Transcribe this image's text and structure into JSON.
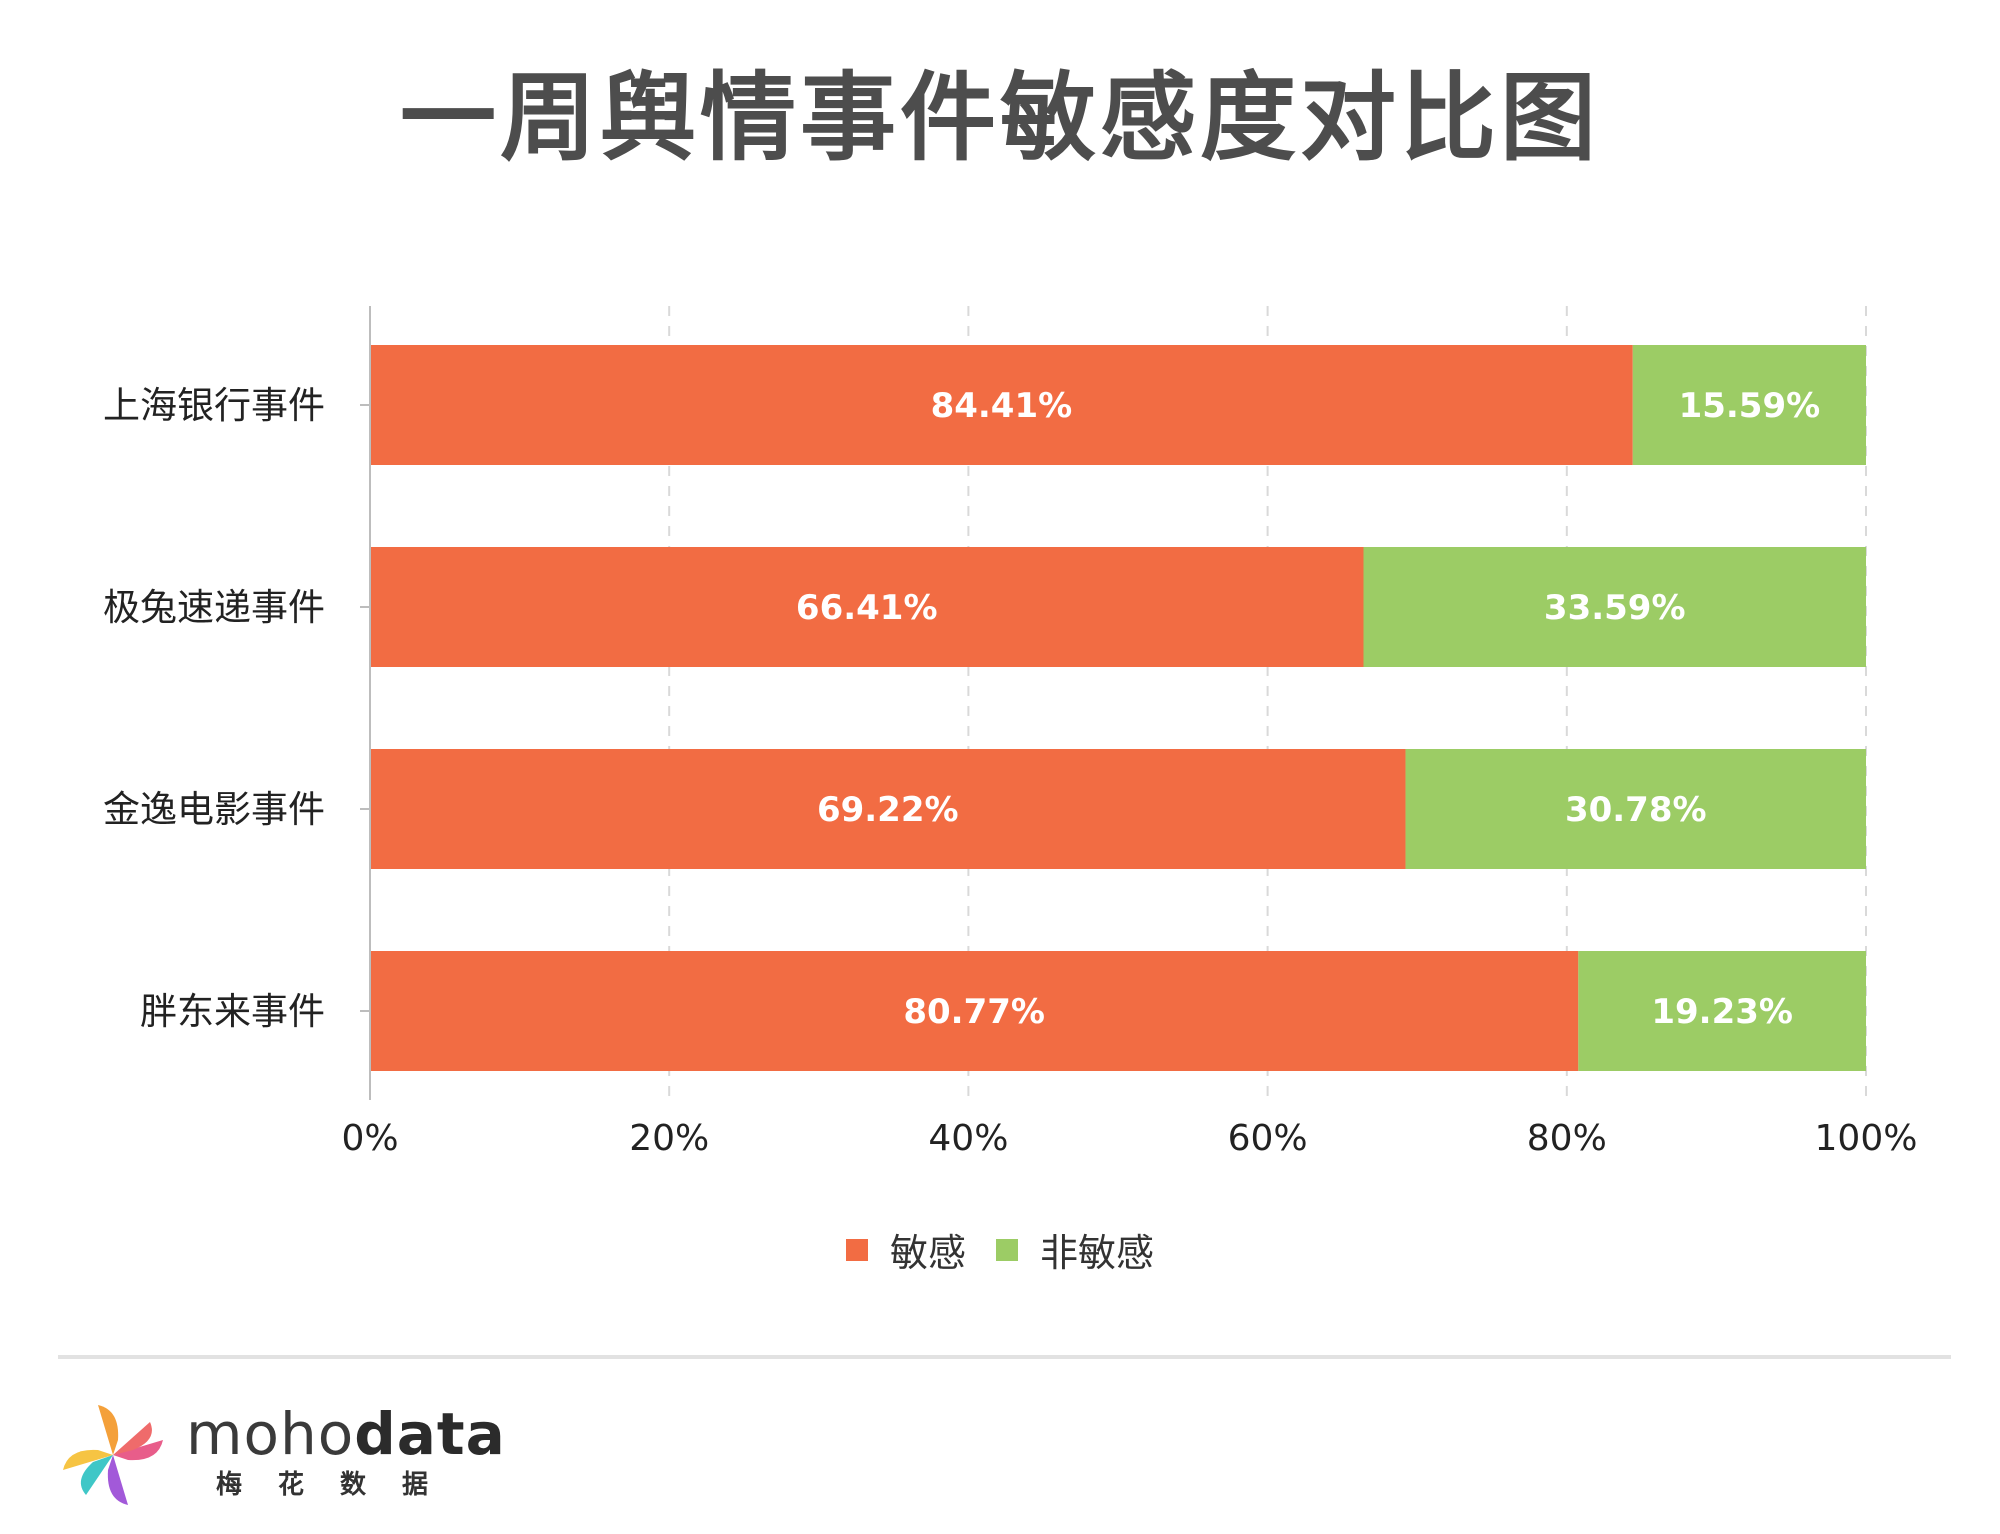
{
  "title": "一周舆情事件敏感度对比图",
  "chart_data": {
    "type": "bar",
    "orientation": "horizontal",
    "stacked": true,
    "percent": true,
    "title": "一周舆情事件敏感度对比图",
    "categories": [
      "上海银行事件",
      "极兔速递事件",
      "金逸电影事件",
      "胖东来事件"
    ],
    "series": [
      {
        "name": "敏感",
        "color": "#f26c43",
        "values": [
          84.41,
          66.41,
          69.22,
          80.77
        ],
        "labels": [
          "84.41%",
          "66.41%",
          "69.22%",
          "80.77%"
        ]
      },
      {
        "name": "非敏感",
        "color": "#9ccc65",
        "values": [
          15.59,
          33.59,
          30.78,
          19.23
        ],
        "labels": [
          "15.59%",
          "33.59%",
          "30.78%",
          "19.23%"
        ]
      }
    ],
    "xlim": [
      0,
      100
    ],
    "xticks": [
      "0%",
      "20%",
      "40%",
      "60%",
      "80%",
      "100%"
    ],
    "grid": "vertical dashed",
    "legend_position": "bottom-center"
  },
  "legend": [
    {
      "label": "敏感",
      "color": "#f26c43"
    },
    {
      "label": "非敏感",
      "color": "#9ccc65"
    }
  ],
  "logo": {
    "word_light": "moho",
    "word_bold": "data",
    "subtitle": "梅花数据"
  }
}
